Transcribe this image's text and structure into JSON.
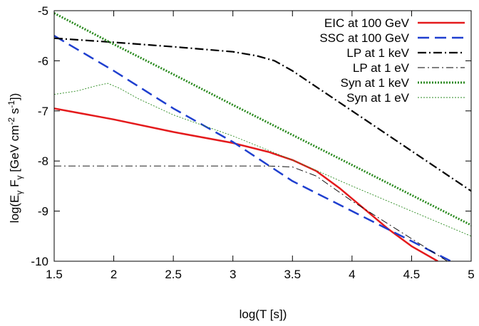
{
  "chart_data": {
    "type": "line",
    "title": "",
    "xlabel": "log(T [s])",
    "ylabel": "log(Eγ Fγ [GeV cm⁻² s⁻¹])",
    "ylabel_parts": {
      "pre": "log(E",
      "sub1": "γ",
      "mid": " F",
      "sub2": "γ",
      "unit": " [GeV cm",
      "exp1": "-2",
      "s": " s",
      "exp2": "-1",
      "close": "])"
    },
    "xlim": [
      1.5,
      5
    ],
    "ylim": [
      -10,
      -5
    ],
    "xticks": [
      1.5,
      2,
      2.5,
      3,
      3.5,
      4,
      4.5,
      5
    ],
    "xtick_labels": [
      "1.5",
      "2",
      "2.5",
      "3",
      "3.5",
      "4",
      "4.5",
      "5"
    ],
    "yticks": [
      -10,
      -9,
      -8,
      -7,
      -6,
      -5
    ],
    "ytick_labels": [
      "-10",
      "-9",
      "-8",
      "-7",
      "-6",
      "-5"
    ],
    "grid": false,
    "legend_position": "top-right",
    "series": [
      {
        "name": "EIC at 100 GeV",
        "color": "#e41a1c",
        "style": "solid-thick",
        "x": [
          1.5,
          2.0,
          2.5,
          3.0,
          3.3,
          3.5,
          3.7,
          3.9,
          4.1,
          4.3,
          4.5,
          4.72
        ],
        "y": [
          -6.95,
          -7.17,
          -7.42,
          -7.64,
          -7.82,
          -7.98,
          -8.2,
          -8.55,
          -8.95,
          -9.35,
          -9.7,
          -10.0
        ]
      },
      {
        "name": "SSC at 100 GeV",
        "color": "#1f3fcf",
        "style": "dashed-thick",
        "x": [
          1.5,
          2.0,
          2.5,
          3.0,
          3.5,
          4.0,
          4.5,
          4.83
        ],
        "y": [
          -5.5,
          -6.2,
          -6.95,
          -7.62,
          -8.4,
          -9.0,
          -9.6,
          -10.0
        ]
      },
      {
        "name": "LP at 1 keV",
        "color": "#000000",
        "style": "dashdot-thick",
        "x": [
          1.5,
          2.0,
          2.5,
          3.0,
          3.2,
          3.35,
          3.5,
          4.0,
          4.5,
          5.0
        ],
        "y": [
          -5.55,
          -5.63,
          -5.72,
          -5.82,
          -5.9,
          -6.0,
          -6.2,
          -7.0,
          -7.8,
          -8.6
        ]
      },
      {
        "name": "LP at 1 eV",
        "color": "#000000",
        "style": "dashdot-thin",
        "x": [
          1.5,
          2.5,
          3.3,
          3.5,
          3.7,
          4.0,
          4.4,
          4.8
        ],
        "y": [
          -8.1,
          -8.1,
          -8.1,
          -8.12,
          -8.3,
          -8.8,
          -9.4,
          -10.0
        ]
      },
      {
        "name": "Syn at 1 keV",
        "color": "#2a8a1f",
        "style": "dotted-thick",
        "x": [
          1.5,
          2.0,
          2.5,
          3.0,
          3.5,
          4.0,
          4.5,
          5.0
        ],
        "y": [
          -5.05,
          -5.67,
          -6.27,
          -6.88,
          -7.48,
          -8.08,
          -8.68,
          -9.28
        ]
      },
      {
        "name": "Syn at 1 eV",
        "color": "#2a8a1f",
        "style": "dotted-thin",
        "x": [
          1.5,
          1.7,
          1.85,
          1.95,
          2.05,
          2.2,
          2.5,
          3.0,
          3.5,
          4.0,
          4.5,
          5.0
        ],
        "y": [
          -6.67,
          -6.6,
          -6.5,
          -6.45,
          -6.55,
          -6.75,
          -7.08,
          -7.5,
          -7.98,
          -8.5,
          -9.0,
          -9.5
        ]
      }
    ]
  }
}
